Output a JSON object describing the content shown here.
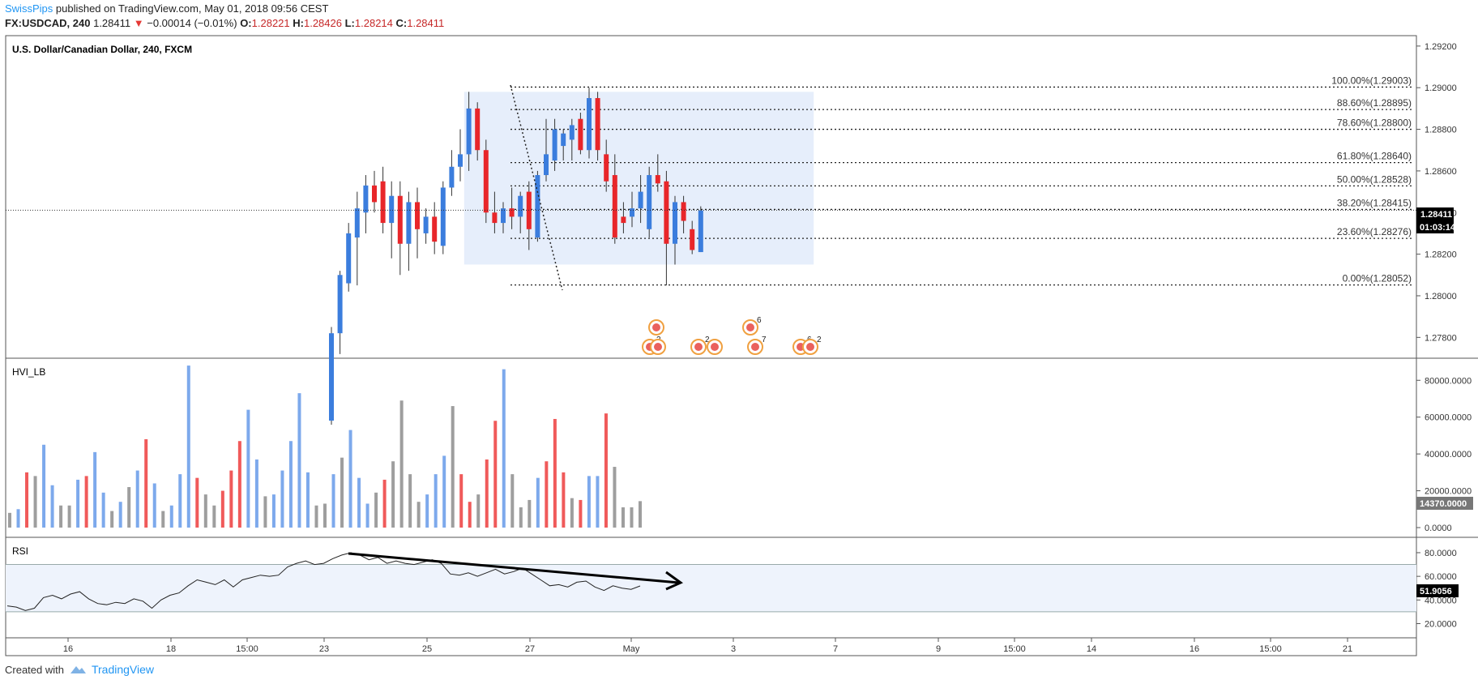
{
  "header": {
    "author": "SwissPips",
    "published": "published on TradingView.com, May 01, 2018 09:56 CEST",
    "symbol": "FX:USDCAD, 240",
    "last": "1.28411",
    "change": "−0.00014 (−0.01%)",
    "o_label": "O:",
    "o": "1.28221",
    "h_label": "H:",
    "h": "1.28426",
    "l_label": "L:",
    "l": "1.28214",
    "c_label": "C:",
    "c": "1.28411"
  },
  "footer": {
    "created": "Created with",
    "brand": "TradingView"
  },
  "colors": {
    "up": "#3b7ddd",
    "down": "#e8262a",
    "neutral": "#9e9e9e",
    "box": "#e6eefb",
    "rsiBand": "#eef3fc"
  },
  "chart_data": [
    {
      "type": "candlestick",
      "title": "U.S. Dollar/Canadian Dollar, 240, FXCM",
      "ylim": [
        1.277,
        1.2925
      ],
      "yticks": [
        "1.29200",
        "1.29000",
        "1.28800",
        "1.28600",
        "1.28400",
        "1.28200",
        "1.28000",
        "1.27800"
      ],
      "ytick_values": [
        1.292,
        1.29,
        1.288,
        1.286,
        1.284,
        1.282,
        1.28,
        1.278
      ],
      "xticks": [
        "16",
        "18",
        "15:00",
        "23",
        "25",
        "27",
        "May",
        "3",
        "7",
        "9",
        "15:00",
        "14",
        "16",
        "15:00",
        "21"
      ],
      "price_label": "1.28411",
      "countdown_label": "01:03:14",
      "last_price": 1.28411,
      "candles": [
        {
          "o": 1.274,
          "h": 1.2785,
          "l": 1.2738,
          "c": 1.2782
        },
        {
          "o": 1.2782,
          "h": 1.2812,
          "l": 1.2772,
          "c": 1.281
        },
        {
          "o": 1.2806,
          "h": 1.2835,
          "l": 1.2802,
          "c": 1.283
        },
        {
          "o": 1.2828,
          "h": 1.285,
          "l": 1.2805,
          "c": 1.2842
        },
        {
          "o": 1.284,
          "h": 1.2858,
          "l": 1.283,
          "c": 1.2853
        },
        {
          "o": 1.2853,
          "h": 1.286,
          "l": 1.284,
          "c": 1.2845
        },
        {
          "o": 1.2855,
          "h": 1.2862,
          "l": 1.283,
          "c": 1.2835
        },
        {
          "o": 1.2835,
          "h": 1.2855,
          "l": 1.2818,
          "c": 1.2848
        },
        {
          "o": 1.2848,
          "h": 1.2855,
          "l": 1.281,
          "c": 1.2825
        },
        {
          "o": 1.2825,
          "h": 1.285,
          "l": 1.2812,
          "c": 1.2845
        },
        {
          "o": 1.2845,
          "h": 1.2852,
          "l": 1.2818,
          "c": 1.2832
        },
        {
          "o": 1.283,
          "h": 1.2842,
          "l": 1.2825,
          "c": 1.2838
        },
        {
          "o": 1.2838,
          "h": 1.2845,
          "l": 1.282,
          "c": 1.2826
        },
        {
          "o": 1.2824,
          "h": 1.2855,
          "l": 1.282,
          "c": 1.2852
        },
        {
          "o": 1.2852,
          "h": 1.287,
          "l": 1.2848,
          "c": 1.2862
        },
        {
          "o": 1.2862,
          "h": 1.288,
          "l": 1.2855,
          "c": 1.2868
        },
        {
          "o": 1.2868,
          "h": 1.2898,
          "l": 1.286,
          "c": 1.289
        },
        {
          "o": 1.289,
          "h": 1.2893,
          "l": 1.2865,
          "c": 1.287
        },
        {
          "o": 1.287,
          "h": 1.2875,
          "l": 1.2835,
          "c": 1.284
        },
        {
          "o": 1.284,
          "h": 1.285,
          "l": 1.283,
          "c": 1.2835
        },
        {
          "o": 1.2835,
          "h": 1.2845,
          "l": 1.283,
          "c": 1.2842
        },
        {
          "o": 1.2842,
          "h": 1.2852,
          "l": 1.2832,
          "c": 1.2838
        },
        {
          "o": 1.2838,
          "h": 1.285,
          "l": 1.283,
          "c": 1.2848
        },
        {
          "o": 1.285,
          "h": 1.2855,
          "l": 1.2822,
          "c": 1.2832
        },
        {
          "o": 1.2828,
          "h": 1.286,
          "l": 1.2826,
          "c": 1.2858
        },
        {
          "o": 1.2858,
          "h": 1.2885,
          "l": 1.2855,
          "c": 1.2868
        },
        {
          "o": 1.2865,
          "h": 1.2885,
          "l": 1.286,
          "c": 1.288
        },
        {
          "o": 1.2872,
          "h": 1.288,
          "l": 1.2865,
          "c": 1.2878
        },
        {
          "o": 1.2875,
          "h": 1.2885,
          "l": 1.2865,
          "c": 1.2882
        },
        {
          "o": 1.2885,
          "h": 1.2888,
          "l": 1.2868,
          "c": 1.287
        },
        {
          "o": 1.287,
          "h": 1.29,
          "l": 1.2866,
          "c": 1.2895
        },
        {
          "o": 1.2895,
          "h": 1.2898,
          "l": 1.2865,
          "c": 1.287
        },
        {
          "o": 1.2868,
          "h": 1.2875,
          "l": 1.285,
          "c": 1.2855
        },
        {
          "o": 1.2858,
          "h": 1.2868,
          "l": 1.2825,
          "c": 1.2828
        },
        {
          "o": 1.2838,
          "h": 1.2845,
          "l": 1.283,
          "c": 1.2835
        },
        {
          "o": 1.2838,
          "h": 1.285,
          "l": 1.2833,
          "c": 1.2842
        },
        {
          "o": 1.2842,
          "h": 1.2858,
          "l": 1.2835,
          "c": 1.285
        },
        {
          "o": 1.2832,
          "h": 1.2862,
          "l": 1.2828,
          "c": 1.2858
        },
        {
          "o": 1.2858,
          "h": 1.2868,
          "l": 1.285,
          "c": 1.2854
        },
        {
          "o": 1.2855,
          "h": 1.286,
          "l": 1.2805,
          "c": 1.2825
        },
        {
          "o": 1.2825,
          "h": 1.2848,
          "l": 1.2815,
          "c": 1.2845
        },
        {
          "o": 1.2845,
          "h": 1.2848,
          "l": 1.283,
          "c": 1.2836
        },
        {
          "o": 1.2832,
          "h": 1.2836,
          "l": 1.282,
          "c": 1.2822
        },
        {
          "o": 1.2821,
          "h": 1.2843,
          "l": 1.2821,
          "c": 1.2841
        }
      ],
      "fib_levels": [
        {
          "label": "100.00%(1.29003)",
          "value": 1.29003
        },
        {
          "label": "88.60%(1.28895)",
          "value": 1.28895
        },
        {
          "label": "78.60%(1.28800)",
          "value": 1.288
        },
        {
          "label": "61.80%(1.28640)",
          "value": 1.2864
        },
        {
          "label": "50.00%(1.28528)",
          "value": 1.28528
        },
        {
          "label": "38.20%(1.28415)",
          "value": 1.28415
        },
        {
          "label": "23.60%(1.28276)",
          "value": 1.28276
        },
        {
          "label": "0.00%(1.28052)",
          "value": 1.28052
        }
      ],
      "box": {
        "start_index": 16.3,
        "end_index": 57,
        "top": 1.2898,
        "bottom": 1.2815
      },
      "event_numbers": [
        "2",
        "2",
        "2",
        "6",
        "7",
        "6",
        "2"
      ]
    },
    {
      "type": "bar",
      "title": "HVI_LB",
      "ylim": [
        0,
        92000
      ],
      "yticks": [
        "80000.0000",
        "60000.0000",
        "40000.0000",
        "20000.0000",
        "0.0000"
      ],
      "ytick_values": [
        80000,
        60000,
        40000,
        20000,
        0
      ],
      "last_label": "14370.0000",
      "values": [
        {
          "v": 8000,
          "c": "n"
        },
        {
          "v": 10000,
          "c": "u"
        },
        {
          "v": 30000,
          "c": "d"
        },
        {
          "v": 28000,
          "c": "n"
        },
        {
          "v": 45000,
          "c": "u"
        },
        {
          "v": 23000,
          "c": "u"
        },
        {
          "v": 12000,
          "c": "n"
        },
        {
          "v": 12000,
          "c": "n"
        },
        {
          "v": 26000,
          "c": "u"
        },
        {
          "v": 28000,
          "c": "d"
        },
        {
          "v": 41000,
          "c": "u"
        },
        {
          "v": 19000,
          "c": "u"
        },
        {
          "v": 9000,
          "c": "n"
        },
        {
          "v": 14000,
          "c": "u"
        },
        {
          "v": 22000,
          "c": "n"
        },
        {
          "v": 31000,
          "c": "u"
        },
        {
          "v": 48000,
          "c": "d"
        },
        {
          "v": 24000,
          "c": "u"
        },
        {
          "v": 9000,
          "c": "n"
        },
        {
          "v": 12000,
          "c": "u"
        },
        {
          "v": 29000,
          "c": "u"
        },
        {
          "v": 88000,
          "c": "u"
        },
        {
          "v": 27000,
          "c": "d"
        },
        {
          "v": 18000,
          "c": "n"
        },
        {
          "v": 12000,
          "c": "n"
        },
        {
          "v": 20000,
          "c": "d"
        },
        {
          "v": 31000,
          "c": "d"
        },
        {
          "v": 47000,
          "c": "d"
        },
        {
          "v": 64000,
          "c": "u"
        },
        {
          "v": 37000,
          "c": "u"
        },
        {
          "v": 17000,
          "c": "n"
        },
        {
          "v": 18000,
          "c": "u"
        },
        {
          "v": 31000,
          "c": "u"
        },
        {
          "v": 47000,
          "c": "u"
        },
        {
          "v": 73000,
          "c": "u"
        },
        {
          "v": 30000,
          "c": "u"
        },
        {
          "v": 12000,
          "c": "n"
        },
        {
          "v": 13000,
          "c": "n"
        },
        {
          "v": 29000,
          "c": "u"
        },
        {
          "v": 38000,
          "c": "n"
        },
        {
          "v": 53000,
          "c": "u"
        },
        {
          "v": 27000,
          "c": "u"
        },
        {
          "v": 13000,
          "c": "u"
        },
        {
          "v": 19000,
          "c": "n"
        },
        {
          "v": 26000,
          "c": "d"
        },
        {
          "v": 36000,
          "c": "n"
        },
        {
          "v": 69000,
          "c": "n"
        },
        {
          "v": 29000,
          "c": "n"
        },
        {
          "v": 14000,
          "c": "n"
        },
        {
          "v": 18000,
          "c": "u"
        },
        {
          "v": 29000,
          "c": "u"
        },
        {
          "v": 39000,
          "c": "u"
        },
        {
          "v": 66000,
          "c": "n"
        },
        {
          "v": 29000,
          "c": "d"
        },
        {
          "v": 14000,
          "c": "d"
        },
        {
          "v": 18000,
          "c": "n"
        },
        {
          "v": 37000,
          "c": "d"
        },
        {
          "v": 58000,
          "c": "d"
        },
        {
          "v": 86000,
          "c": "u"
        },
        {
          "v": 29000,
          "c": "n"
        },
        {
          "v": 11000,
          "c": "n"
        },
        {
          "v": 15000,
          "c": "n"
        },
        {
          "v": 27000,
          "c": "u"
        },
        {
          "v": 36000,
          "c": "d"
        },
        {
          "v": 59000,
          "c": "d"
        },
        {
          "v": 30000,
          "c": "d"
        },
        {
          "v": 16000,
          "c": "n"
        },
        {
          "v": 15000,
          "c": "d"
        },
        {
          "v": 28000,
          "c": "u"
        },
        {
          "v": 28000,
          "c": "u"
        },
        {
          "v": 62000,
          "c": "d"
        },
        {
          "v": 33000,
          "c": "n"
        },
        {
          "v": 11000,
          "c": "n"
        },
        {
          "v": 11000,
          "c": "n"
        },
        {
          "v": 14370,
          "c": "n"
        }
      ]
    },
    {
      "type": "line",
      "title": "RSI",
      "ylim": [
        8,
        93
      ],
      "yticks": [
        "80.0000",
        "60.0000",
        "40.0000",
        "20.0000"
      ],
      "ytick_values": [
        80,
        60,
        40,
        20
      ],
      "band": [
        30,
        70
      ],
      "last_label": "51.9056",
      "values": [
        35,
        34,
        31,
        33,
        42,
        44,
        41,
        45,
        47,
        41,
        37,
        36,
        38,
        37,
        41,
        39,
        33,
        40,
        44,
        46,
        52,
        57,
        55,
        53,
        57,
        51,
        57,
        59,
        61,
        60,
        61,
        68,
        71,
        73,
        70,
        71,
        75,
        78,
        80,
        78,
        74,
        76,
        71,
        73,
        71,
        70,
        72,
        74,
        71,
        62,
        61,
        63,
        60,
        63,
        66,
        62,
        64,
        67,
        62,
        57,
        52,
        53,
        51,
        55,
        56,
        51,
        48,
        52,
        50,
        49,
        51.9
      ]
    }
  ]
}
